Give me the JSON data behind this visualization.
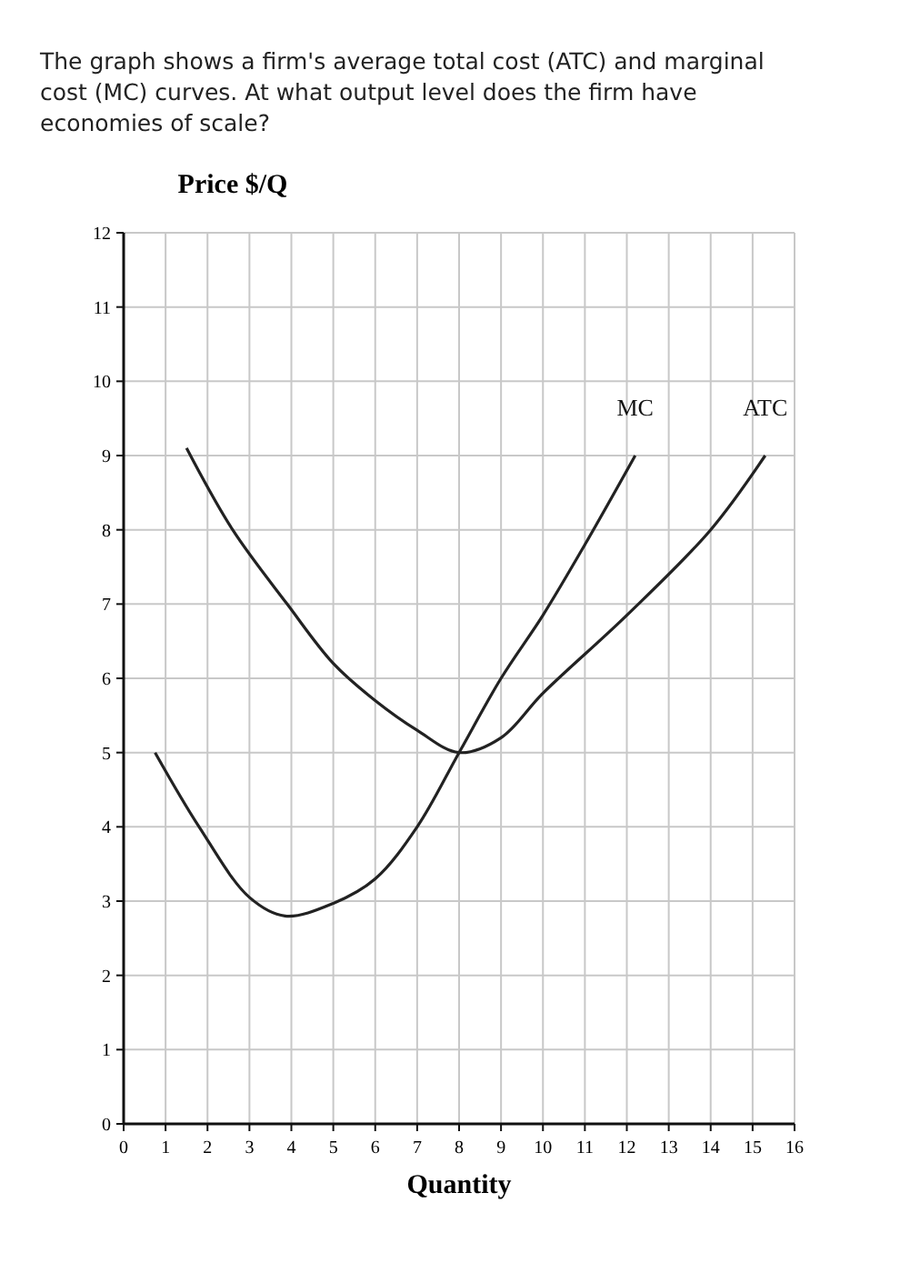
{
  "chart_data": {
    "type": "line",
    "title": "The graph shows a firm's average total cost (ATC) and marginal cost (MC) curves. At what output level does the firm have economies of scale?",
    "xlabel": "Quantity",
    "ylabel": "Price $/Q",
    "xlim": [
      0,
      16
    ],
    "xticks": [
      0,
      1,
      2,
      3,
      4,
      5,
      6,
      7,
      8,
      9,
      10,
      11,
      12,
      13,
      14,
      15,
      16
    ],
    "ylim": [
      0,
      12
    ],
    "yticks": [
      0,
      1,
      2,
      3,
      4,
      5,
      6,
      7,
      8,
      9,
      10,
      11,
      12
    ],
    "grid": true,
    "marker": "none",
    "line_style": "solid",
    "series": [
      {
        "name": "MC",
        "color": "#222222",
        "x": [
          0.75,
          1.8,
          3,
          3.85,
          5,
          6,
          7,
          8,
          9,
          10,
          11,
          12.2
        ],
        "values": [
          5,
          4,
          3.05,
          2.8,
          2.97,
          3.3,
          4,
          5,
          6,
          6.85,
          7.8,
          9
        ]
      },
      {
        "name": "ATC",
        "color": "#222222",
        "x": [
          1.5,
          2.6,
          3.9,
          5,
          6,
          7,
          8,
          9,
          10,
          12,
          14,
          15.3
        ],
        "values": [
          9.1,
          8,
          7,
          6.2,
          5.7,
          5.3,
          5,
          5.2,
          5.8,
          6.85,
          8,
          9
        ]
      }
    ]
  }
}
